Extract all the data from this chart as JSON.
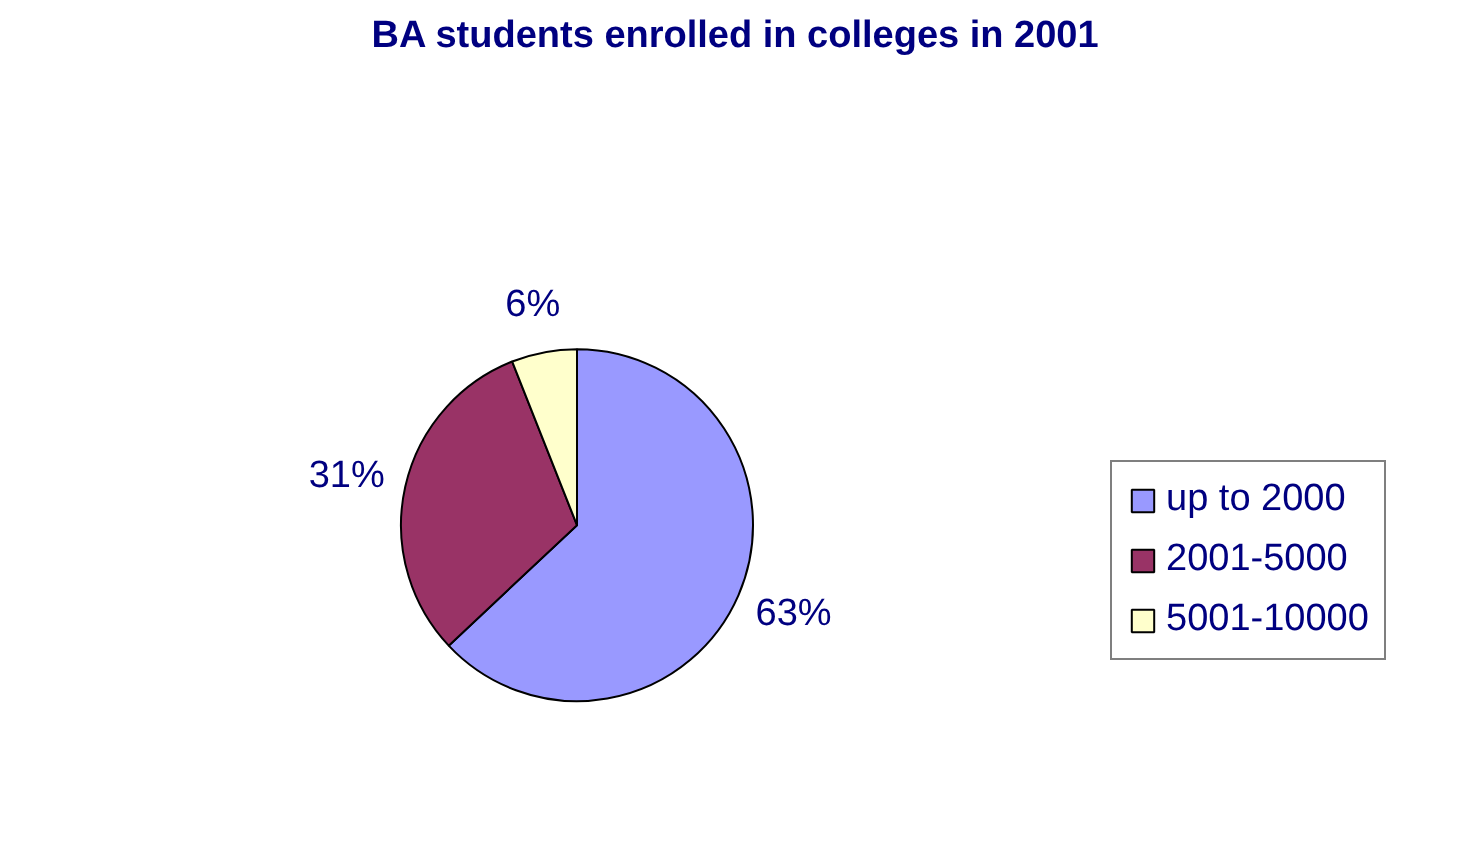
{
  "chart_data": {
    "type": "pie",
    "title": "BA students enrolled in colleges in  2001",
    "categories": [
      "up to 2000",
      "2001-5000",
      "5001-10000"
    ],
    "values": [
      63,
      31,
      6
    ],
    "colors": [
      "#9999ff",
      "#993366",
      "#ffffcc"
    ],
    "value_labels": [
      "63%",
      "31%",
      "6%"
    ],
    "legend": "right"
  }
}
